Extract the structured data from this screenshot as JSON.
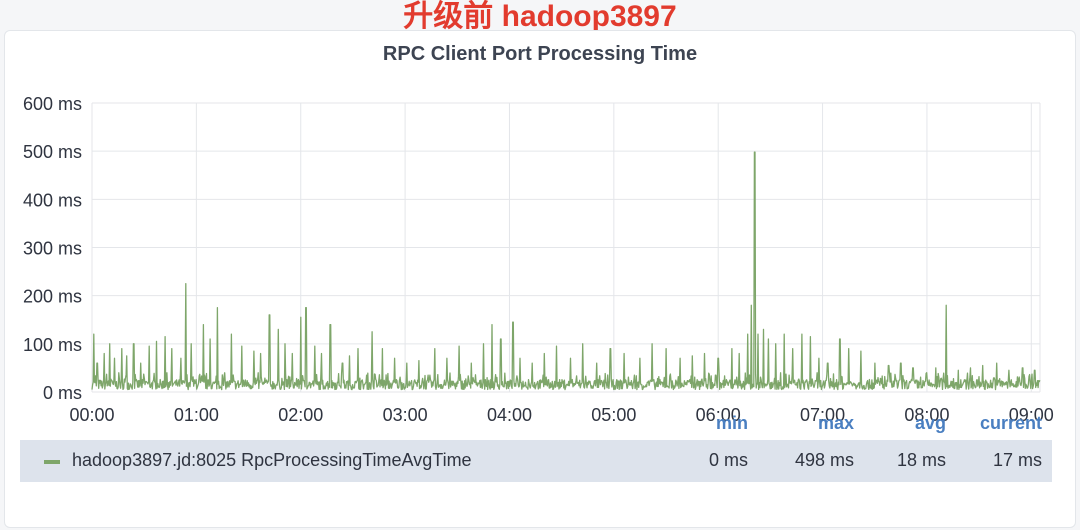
{
  "caption": "升级前 hadoop3897",
  "colors": {
    "caption": "#e23b2e",
    "series": "#7ea66a",
    "legend_header": "#4a7fc1",
    "legend_row": "#dde3ec",
    "grid": "#e4e6ea"
  },
  "legend": {
    "headers": {
      "min": "min",
      "max": "max",
      "avg": "avg",
      "current": "current"
    },
    "row": {
      "name": "hadoop3897.jd:8025 RpcProcessingTimeAvgTime",
      "min": "0 ms",
      "max": "498 ms",
      "avg": "18 ms",
      "current": "17 ms"
    }
  },
  "chart_data": {
    "type": "line",
    "title": "RPC Client Port Processing Time",
    "y_unit": "ms",
    "ylim": [
      0,
      600
    ],
    "y_ticks": [
      "0 ms",
      "100 ms",
      "200 ms",
      "300 ms",
      "400 ms",
      "500 ms",
      "600 ms"
    ],
    "x_ticks": [
      "00:00",
      "01:00",
      "02:00",
      "03:00",
      "04:00",
      "05:00",
      "06:00",
      "07:00",
      "08:00",
      "09:00"
    ],
    "xlim": [
      "00:00",
      "09:05"
    ],
    "grid": true,
    "legend_placement": "bottom",
    "series": [
      {
        "name": "hadoop3897.jd:8025 RpcProcessingTimeAvgTime",
        "baseline_ms": [
          5,
          40
        ],
        "spikes": [
          [
            "00:01",
            120
          ],
          [
            "00:03",
            60
          ],
          [
            "00:07",
            80
          ],
          [
            "00:10",
            100
          ],
          [
            "00:13",
            70
          ],
          [
            "00:17",
            90
          ],
          [
            "00:20",
            75
          ],
          [
            "00:24",
            100
          ],
          [
            "00:28",
            60
          ],
          [
            "00:33",
            95
          ],
          [
            "00:37",
            105
          ],
          [
            "00:42",
            115
          ],
          [
            "00:46",
            90
          ],
          [
            "00:51",
            70
          ],
          [
            "00:54",
            225
          ],
          [
            "00:57",
            100
          ],
          [
            "01:04",
            140
          ],
          [
            "01:08",
            110
          ],
          [
            "01:12",
            175
          ],
          [
            "01:20",
            120
          ],
          [
            "01:26",
            95
          ],
          [
            "01:33",
            85
          ],
          [
            "01:37",
            80
          ],
          [
            "01:42",
            160
          ],
          [
            "01:47",
            130
          ],
          [
            "01:51",
            100
          ],
          [
            "01:55",
            80
          ],
          [
            "02:00",
            155
          ],
          [
            "02:03",
            175
          ],
          [
            "02:08",
            95
          ],
          [
            "02:12",
            80
          ],
          [
            "02:17",
            140
          ],
          [
            "02:24",
            60
          ],
          [
            "02:28",
            75
          ],
          [
            "02:33",
            90
          ],
          [
            "02:41",
            125
          ],
          [
            "02:47",
            90
          ],
          [
            "02:54",
            70
          ],
          [
            "03:01",
            60
          ],
          [
            "03:08",
            65
          ],
          [
            "03:17",
            90
          ],
          [
            "03:24",
            70
          ],
          [
            "03:31",
            95
          ],
          [
            "03:38",
            60
          ],
          [
            "03:45",
            100
          ],
          [
            "03:50",
            140
          ],
          [
            "03:55",
            110
          ],
          [
            "04:02",
            145
          ],
          [
            "04:06",
            70
          ],
          [
            "04:13",
            60
          ],
          [
            "04:20",
            80
          ],
          [
            "04:27",
            95
          ],
          [
            "04:35",
            70
          ],
          [
            "04:42",
            100
          ],
          [
            "04:50",
            60
          ],
          [
            "04:58",
            90
          ],
          [
            "05:06",
            80
          ],
          [
            "05:15",
            70
          ],
          [
            "05:22",
            100
          ],
          [
            "05:30",
            90
          ],
          [
            "05:38",
            70
          ],
          [
            "05:45",
            75
          ],
          [
            "05:52",
            80
          ],
          [
            "06:00",
            70
          ],
          [
            "06:08",
            90
          ],
          [
            "06:12",
            80
          ],
          [
            "06:17",
            120
          ],
          [
            "06:19",
            180
          ],
          [
            "06:21",
            498
          ],
          [
            "06:23",
            120
          ],
          [
            "06:26",
            130
          ],
          [
            "06:29",
            110
          ],
          [
            "06:33",
            100
          ],
          [
            "06:38",
            120
          ],
          [
            "06:43",
            90
          ],
          [
            "06:48",
            120
          ],
          [
            "06:53",
            115
          ],
          [
            "06:58",
            70
          ],
          [
            "07:03",
            60
          ],
          [
            "07:10",
            110
          ],
          [
            "07:15",
            90
          ],
          [
            "07:22",
            85
          ],
          [
            "07:30",
            60
          ],
          [
            "07:38",
            55
          ],
          [
            "07:45",
            60
          ],
          [
            "07:52",
            50
          ],
          [
            "08:00",
            40
          ],
          [
            "08:05",
            50
          ],
          [
            "08:11",
            180
          ],
          [
            "08:18",
            45
          ],
          [
            "08:25",
            50
          ],
          [
            "08:32",
            55
          ],
          [
            "08:40",
            60
          ],
          [
            "08:47",
            45
          ],
          [
            "08:55",
            50
          ],
          [
            "09:02",
            45
          ]
        ]
      }
    ]
  }
}
